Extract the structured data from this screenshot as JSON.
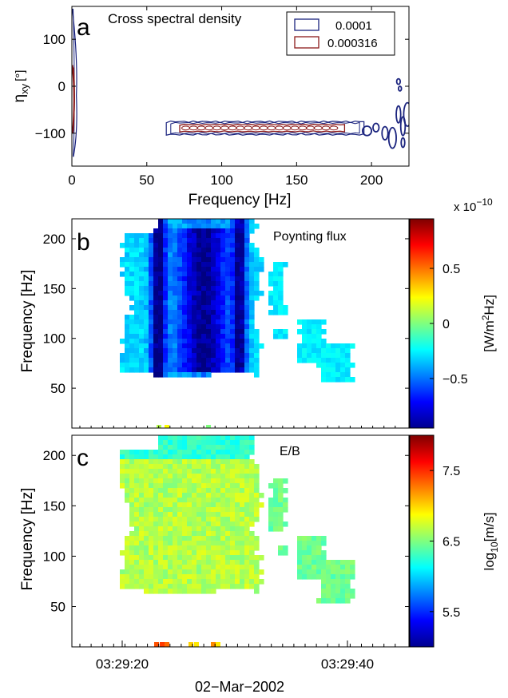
{
  "chart_data": [
    {
      "panel": "a",
      "type": "contour",
      "title": "Cross spectral density",
      "xlabel": "Frequency [Hz]",
      "ylabel": "η_xy [°]",
      "ylabel_main": "η",
      "ylabel_sub": "xy",
      "ylabel_unit": "[°]",
      "xlim": [
        0,
        225
      ],
      "ylim": [
        -170,
        170
      ],
      "xticks": [
        0,
        50,
        100,
        150,
        200
      ],
      "yticks": [
        100,
        0,
        -100
      ],
      "ytick_labels": [
        "100",
        "0",
        "−100"
      ],
      "legend_position": "top-right",
      "series": [
        {
          "name": "0.0001",
          "color": "#1a237e",
          "regions": [
            {
              "x": [
                0,
                2
              ],
              "y": [
                -145,
                165
              ]
            },
            {
              "x": [
                63,
                195
              ],
              "y": [
                -103,
                -75
              ]
            },
            {
              "x": [
                195,
                225
              ],
              "y": [
                -140,
                -20
              ]
            }
          ]
        },
        {
          "name": "0.000316",
          "color": "#8b1a1a",
          "regions": [
            {
              "x": [
                0,
                1.5
              ],
              "y": [
                -100,
                40
              ]
            },
            {
              "x": [
                72,
                180
              ],
              "y": [
                -98,
                -80
              ]
            }
          ]
        }
      ]
    },
    {
      "panel": "b",
      "type": "heatmap",
      "label": "Poynting flux",
      "ylabel": "Frequency [Hz]",
      "ylim": [
        10,
        220
      ],
      "yticks": [
        200,
        150,
        100,
        50
      ],
      "colorbar": {
        "exponent_label": "x 10",
        "exponent": "−10",
        "label": "[W/m²Hz]",
        "ticks": [
          "0.5",
          "0",
          "−0.5"
        ],
        "tick_values": [
          0.5,
          0,
          -0.5
        ],
        "range": [
          -0.95,
          0.95
        ]
      }
    },
    {
      "panel": "c",
      "type": "heatmap",
      "label": "E/B",
      "ylabel": "Frequency [Hz]",
      "ylim": [
        10,
        220
      ],
      "yticks": [
        200,
        150,
        100,
        50
      ],
      "xtick_labels": [
        "03:29:20",
        "03:29:40"
      ],
      "xlabel": "02−Mar−2002",
      "colorbar": {
        "label": "log10[m/s]",
        "label_main": "log",
        "label_sub": "10",
        "label_unit": "[m/s]",
        "ticks": [
          "7.5",
          "6.5",
          "5.5"
        ],
        "tick_values": [
          7.5,
          6.5,
          5.5
        ],
        "range": [
          5.0,
          8.0
        ]
      }
    }
  ],
  "palette": {
    "jet": [
      "#00008f",
      "#0000ff",
      "#007fff",
      "#00ffff",
      "#7fff7f",
      "#ffff00",
      "#ff7f00",
      "#ff0000",
      "#7f0000"
    ]
  }
}
